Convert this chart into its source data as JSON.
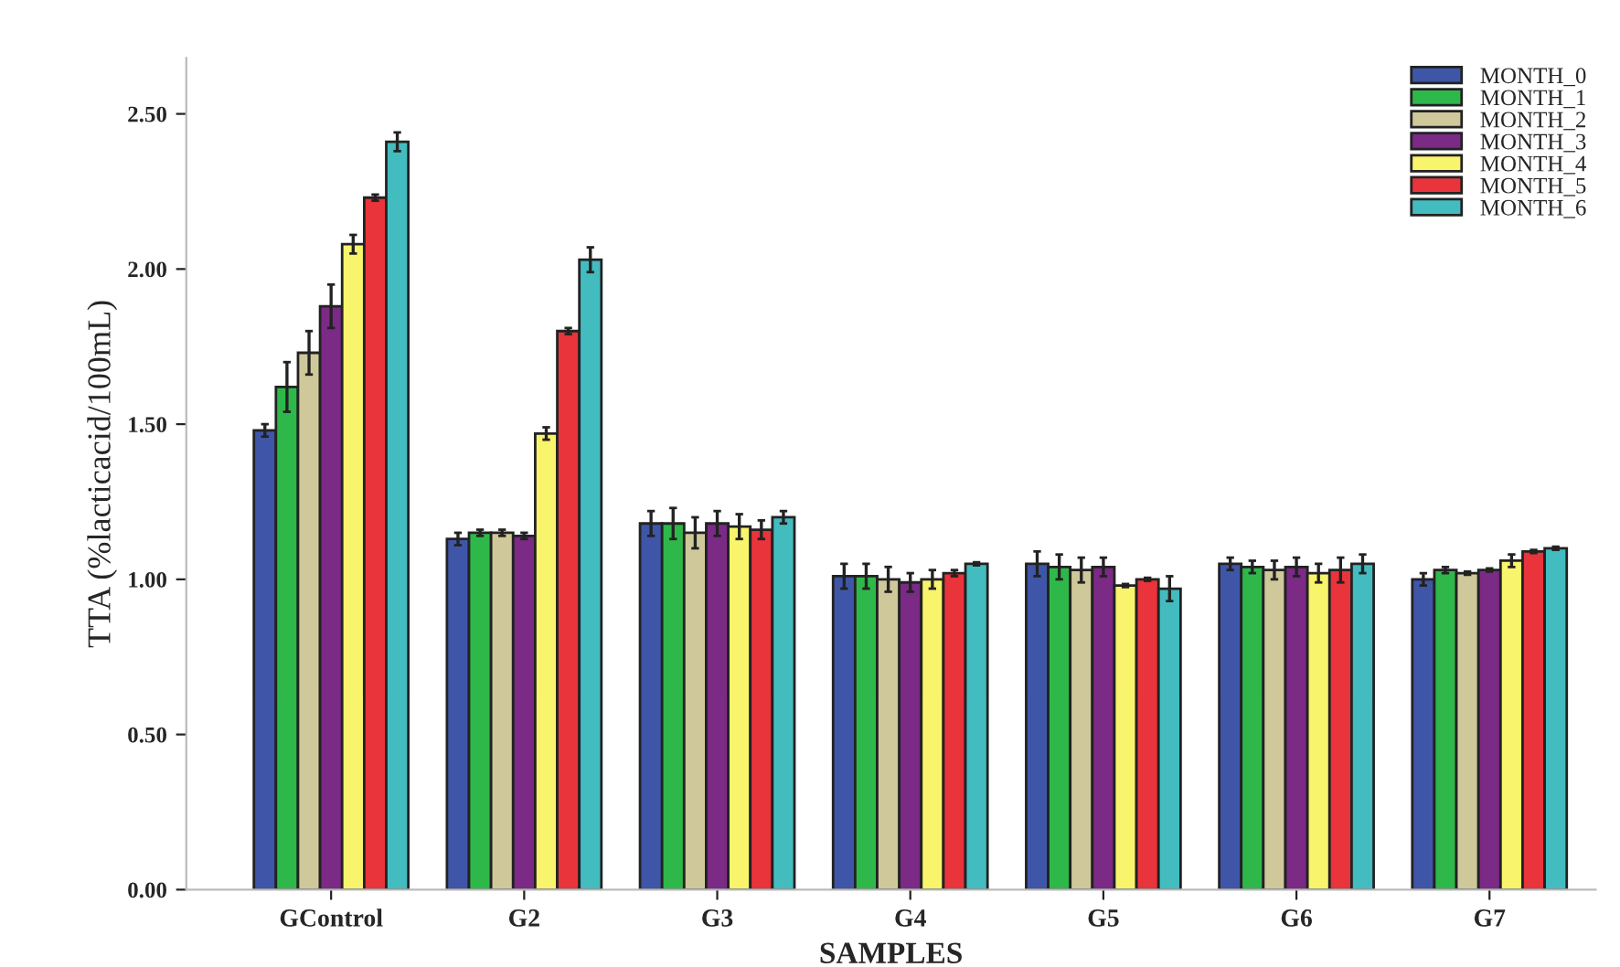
{
  "chart_data": {
    "type": "bar",
    "xlabel": "SAMPLES",
    "ylabel": "TTA (%lacticacid/100mL)",
    "categories": [
      "GControl",
      "G2",
      "G3",
      "G4",
      "G5",
      "G6",
      "G7"
    ],
    "series": [
      {
        "name": "MONTH_0",
        "color": "#3f56a8",
        "values": [
          1.48,
          1.13,
          1.18,
          1.01,
          1.05,
          1.05,
          1.0
        ],
        "errors": [
          0.02,
          0.02,
          0.04,
          0.04,
          0.04,
          0.02,
          0.02
        ]
      },
      {
        "name": "MONTH_1",
        "color": "#2fb84a",
        "values": [
          1.62,
          1.15,
          1.18,
          1.01,
          1.04,
          1.04,
          1.03
        ],
        "errors": [
          0.08,
          0.01,
          0.05,
          0.04,
          0.04,
          0.02,
          0.01
        ]
      },
      {
        "name": "MONTH_2",
        "color": "#cfc89a",
        "values": [
          1.73,
          1.15,
          1.15,
          1.0,
          1.03,
          1.03,
          1.02
        ],
        "errors": [
          0.07,
          0.01,
          0.05,
          0.04,
          0.04,
          0.03,
          0.005
        ]
      },
      {
        "name": "MONTH_3",
        "color": "#7b2a86",
        "values": [
          1.88,
          1.14,
          1.18,
          0.99,
          1.04,
          1.04,
          1.03
        ],
        "errors": [
          0.07,
          0.01,
          0.04,
          0.03,
          0.03,
          0.03,
          0.005
        ]
      },
      {
        "name": "MONTH_4",
        "color": "#f8f46c",
        "values": [
          2.08,
          1.47,
          1.17,
          1.0,
          0.98,
          1.02,
          1.06
        ],
        "errors": [
          0.03,
          0.02,
          0.04,
          0.03,
          0.005,
          0.03,
          0.02
        ]
      },
      {
        "name": "MONTH_5",
        "color": "#e8343a",
        "values": [
          2.23,
          1.8,
          1.16,
          1.02,
          1.0,
          1.03,
          1.09
        ],
        "errors": [
          0.01,
          0.01,
          0.03,
          0.01,
          0.005,
          0.04,
          0.005
        ]
      },
      {
        "name": "MONTH_6",
        "color": "#43bcc0",
        "values": [
          2.41,
          2.03,
          1.2,
          1.05,
          0.97,
          1.05,
          1.1
        ],
        "errors": [
          0.03,
          0.04,
          0.02,
          0.005,
          0.04,
          0.03,
          0.005
        ]
      }
    ],
    "ylim": [
      0,
      2.68
    ],
    "yticks": [
      {
        "value": 0,
        "label": "0.00"
      },
      {
        "value": 0.5,
        "label": "0.50"
      },
      {
        "value": 1.0,
        "label": "1.00"
      },
      {
        "value": 1.5,
        "label": "1.50"
      },
      {
        "value": 2.0,
        "label": "2.00"
      },
      {
        "value": 2.5,
        "label": "2.50"
      }
    ],
    "legend": "top right",
    "grid": false
  }
}
